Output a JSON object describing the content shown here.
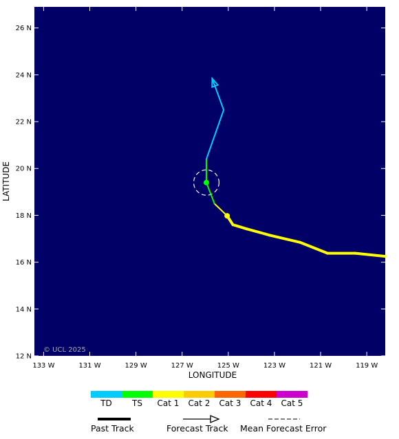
{
  "map": {
    "xlabel": "LONGITUDE",
    "ylabel": "LATITUDE",
    "copyright": "© UCL 2025",
    "background": "#000066",
    "lon_ticks": [
      "133 W",
      "131 W",
      "129 W",
      "127 W",
      "125 W",
      "123 W",
      "121 W",
      "119 W"
    ],
    "lat_ticks": [
      "26 N",
      "24 N",
      "22 N",
      "20 N",
      "18 N",
      "16 N",
      "14 N",
      "12 N"
    ],
    "lon_range": [
      -133.4,
      -118.2
    ],
    "lat_range": [
      12.0,
      26.9
    ]
  },
  "chart_data": {
    "type": "storm-track-map",
    "past_track": [
      {
        "lon": -118.2,
        "lat": 16.25,
        "cat": "Cat 1"
      },
      {
        "lon": -119.5,
        "lat": 16.38,
        "cat": "Cat 1"
      },
      {
        "lon": -120.7,
        "lat": 16.38,
        "cat": "Cat 1"
      },
      {
        "lon": -121.9,
        "lat": 16.85,
        "cat": "Cat 1"
      },
      {
        "lon": -123.2,
        "lat": 17.15,
        "cat": "Cat 1"
      },
      {
        "lon": -124.2,
        "lat": 17.42,
        "cat": "Cat 1"
      },
      {
        "lon": -124.8,
        "lat": 17.6,
        "cat": "Cat 1"
      },
      {
        "lon": -125.05,
        "lat": 17.98,
        "cat": "Cat 1"
      }
    ],
    "forecast_track": [
      {
        "lon": -125.05,
        "lat": 17.98,
        "cat": "Cat 1"
      },
      {
        "lon": -125.6,
        "lat": 18.5,
        "cat": "Cat 1"
      },
      {
        "lon": -125.95,
        "lat": 19.4,
        "cat": "TS"
      },
      {
        "lon": -125.95,
        "lat": 20.4,
        "cat": "TS"
      },
      {
        "lon": -125.2,
        "lat": 22.5,
        "cat": "TD"
      },
      {
        "lon": -125.7,
        "lat": 23.85,
        "cat": "TD"
      }
    ],
    "positions": [
      {
        "lon": -125.05,
        "lat": 17.98,
        "cat": "Cat 1"
      },
      {
        "lon": -125.95,
        "lat": 19.4,
        "cat": "TS"
      }
    ],
    "error_circle": {
      "lon": -125.95,
      "lat": 19.4,
      "radius_deg": 0.55
    }
  },
  "legend": {
    "categories": [
      {
        "label": "TD",
        "color": "#00ccff"
      },
      {
        "label": "TS",
        "color": "#00ff00"
      },
      {
        "label": "Cat 1",
        "color": "#ffff00"
      },
      {
        "label": "Cat 2",
        "color": "#ffcc00"
      },
      {
        "label": "Cat 3",
        "color": "#ff6600"
      },
      {
        "label": "Cat 4",
        "color": "#ff0000"
      },
      {
        "label": "Cat 5",
        "color": "#cc00cc"
      }
    ],
    "past_track": "Past Track",
    "forecast_track": "Forecast Track",
    "mean_error": "Mean Forecast Error"
  }
}
